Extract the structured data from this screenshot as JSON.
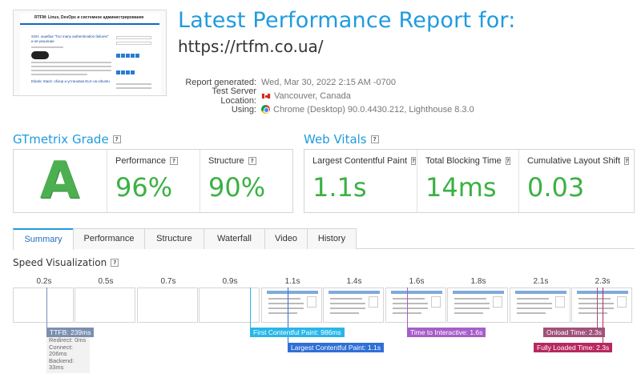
{
  "thumbnail": {
    "site_title": "RTFM: Linux, DevOps и системное администрирование",
    "post_title": "SSH: ошибка \"Too many authentication failures\" и её решение",
    "post2_title": "Elastic Stack: обзор и установка ELK на Ubuntu"
  },
  "header": {
    "title": "Latest Performance Report for:",
    "url": "https://rtfm.co.ua/"
  },
  "meta": {
    "report_generated_label": "Report generated:",
    "report_generated_value": "Wed, Mar 30, 2022 2:15 AM -0700",
    "server_location_label": "Test Server Location:",
    "server_location_value": "Vancouver, Canada",
    "using_label": "Using:",
    "using_value": "Chrome (Desktop) 90.0.4430.212, Lighthouse 8.3.0"
  },
  "gtmetrix": {
    "title": "GTmetrix Grade",
    "help": "?",
    "grade": "A",
    "performance_label": "Performance",
    "performance_value": "96%",
    "structure_label": "Structure",
    "structure_value": "90%"
  },
  "web_vitals": {
    "title": "Web Vitals",
    "help": "?",
    "lcp_label": "Largest Contentful Paint",
    "lcp_value": "1.1s",
    "tbt_label": "Total Blocking Time",
    "tbt_value": "14ms",
    "cls_label": "Cumulative Layout Shift",
    "cls_value": "0.03"
  },
  "tabs": [
    "Summary",
    "Performance",
    "Structure",
    "Waterfall",
    "Video",
    "History"
  ],
  "active_tab": "Summary",
  "speed_vis": {
    "title": "Speed Visualization",
    "help": "?",
    "ticks": [
      "0.2s",
      "0.5s",
      "0.7s",
      "0.9s",
      "1.1s",
      "1.4s",
      "1.6s",
      "1.8s",
      "2.1s",
      "2.3s"
    ],
    "ttfb": "TTFB: 239ms",
    "ttfb_redirect": "Redirect: 0ms",
    "ttfb_connect": "Connect: 206ms",
    "ttfb_backend": "Backend: 33ms",
    "fcp": "First Contentful Paint: 986ms",
    "lcp": "Largest Contentful Paint: 1.1s",
    "tti": "Time to Interactive: 1.6s",
    "onload": "Onload Time: 2.3s",
    "fully_loaded": "Fully Loaded Time: 2.3s"
  },
  "colors": {
    "accent": "#1f9bde",
    "grade_green": "#4caf50",
    "value_green": "#3bb143",
    "ttfb": "#7b8fb0",
    "fcp": "#29b6e8",
    "lcp": "#2f6fd6",
    "tti": "#a65ec9",
    "onload": "#a0527a",
    "fully_loaded": "#b8285f"
  }
}
